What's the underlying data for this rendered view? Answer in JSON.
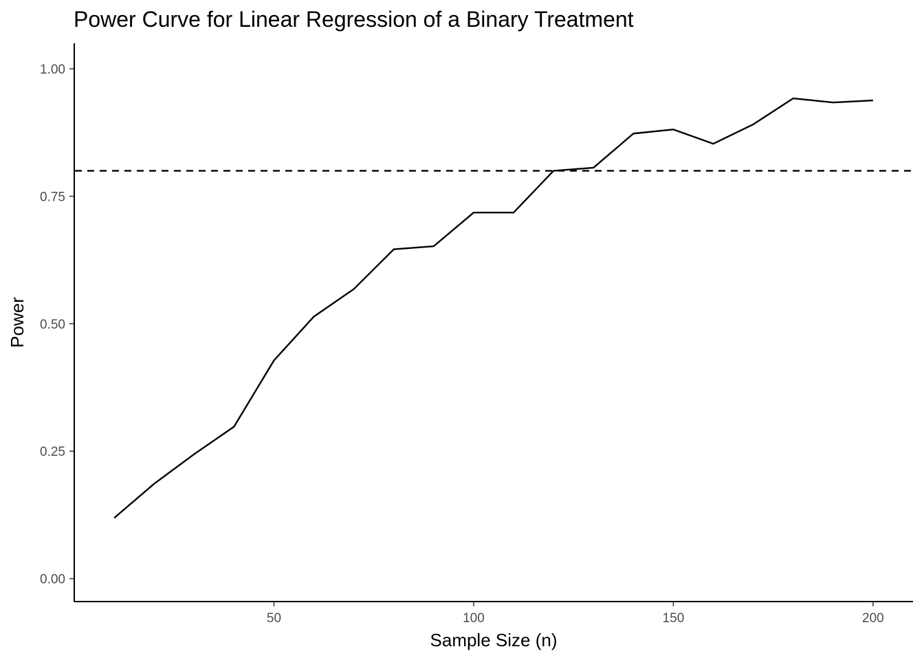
{
  "chart_data": {
    "type": "line",
    "title": "Power Curve for Linear Regression of a Binary Treatment",
    "xlabel": "Sample Size (n)",
    "ylabel": "Power",
    "xlim": [
      0,
      210
    ],
    "ylim": [
      -0.045,
      1.05
    ],
    "xticks": [
      50,
      100,
      150,
      200
    ],
    "xtick_labels": [
      "50",
      "100",
      "150",
      "200"
    ],
    "yticks": [
      0,
      0.25,
      0.5,
      0.75,
      1.0
    ],
    "ytick_labels": [
      "0.00",
      "0.25",
      "0.50",
      "0.75",
      "1.00"
    ],
    "grid": false,
    "x": [
      10,
      20,
      30,
      40,
      50,
      60,
      70,
      80,
      90,
      100,
      110,
      120,
      130,
      140,
      150,
      160,
      170,
      180,
      190,
      200
    ],
    "series": [
      {
        "values": [
          0.119,
          0.186,
          0.244,
          0.298,
          0.428,
          0.514,
          0.568,
          0.646,
          0.652,
          0.718,
          0.718,
          0.8,
          0.806,
          0.873,
          0.881,
          0.853,
          0.891,
          0.942,
          0.934,
          0.938
        ],
        "color": "#000000",
        "style": "solid"
      }
    ],
    "reference_lines": [
      {
        "axis": "y",
        "value": 0.8,
        "style": "dashed",
        "color": "#000000"
      }
    ]
  }
}
